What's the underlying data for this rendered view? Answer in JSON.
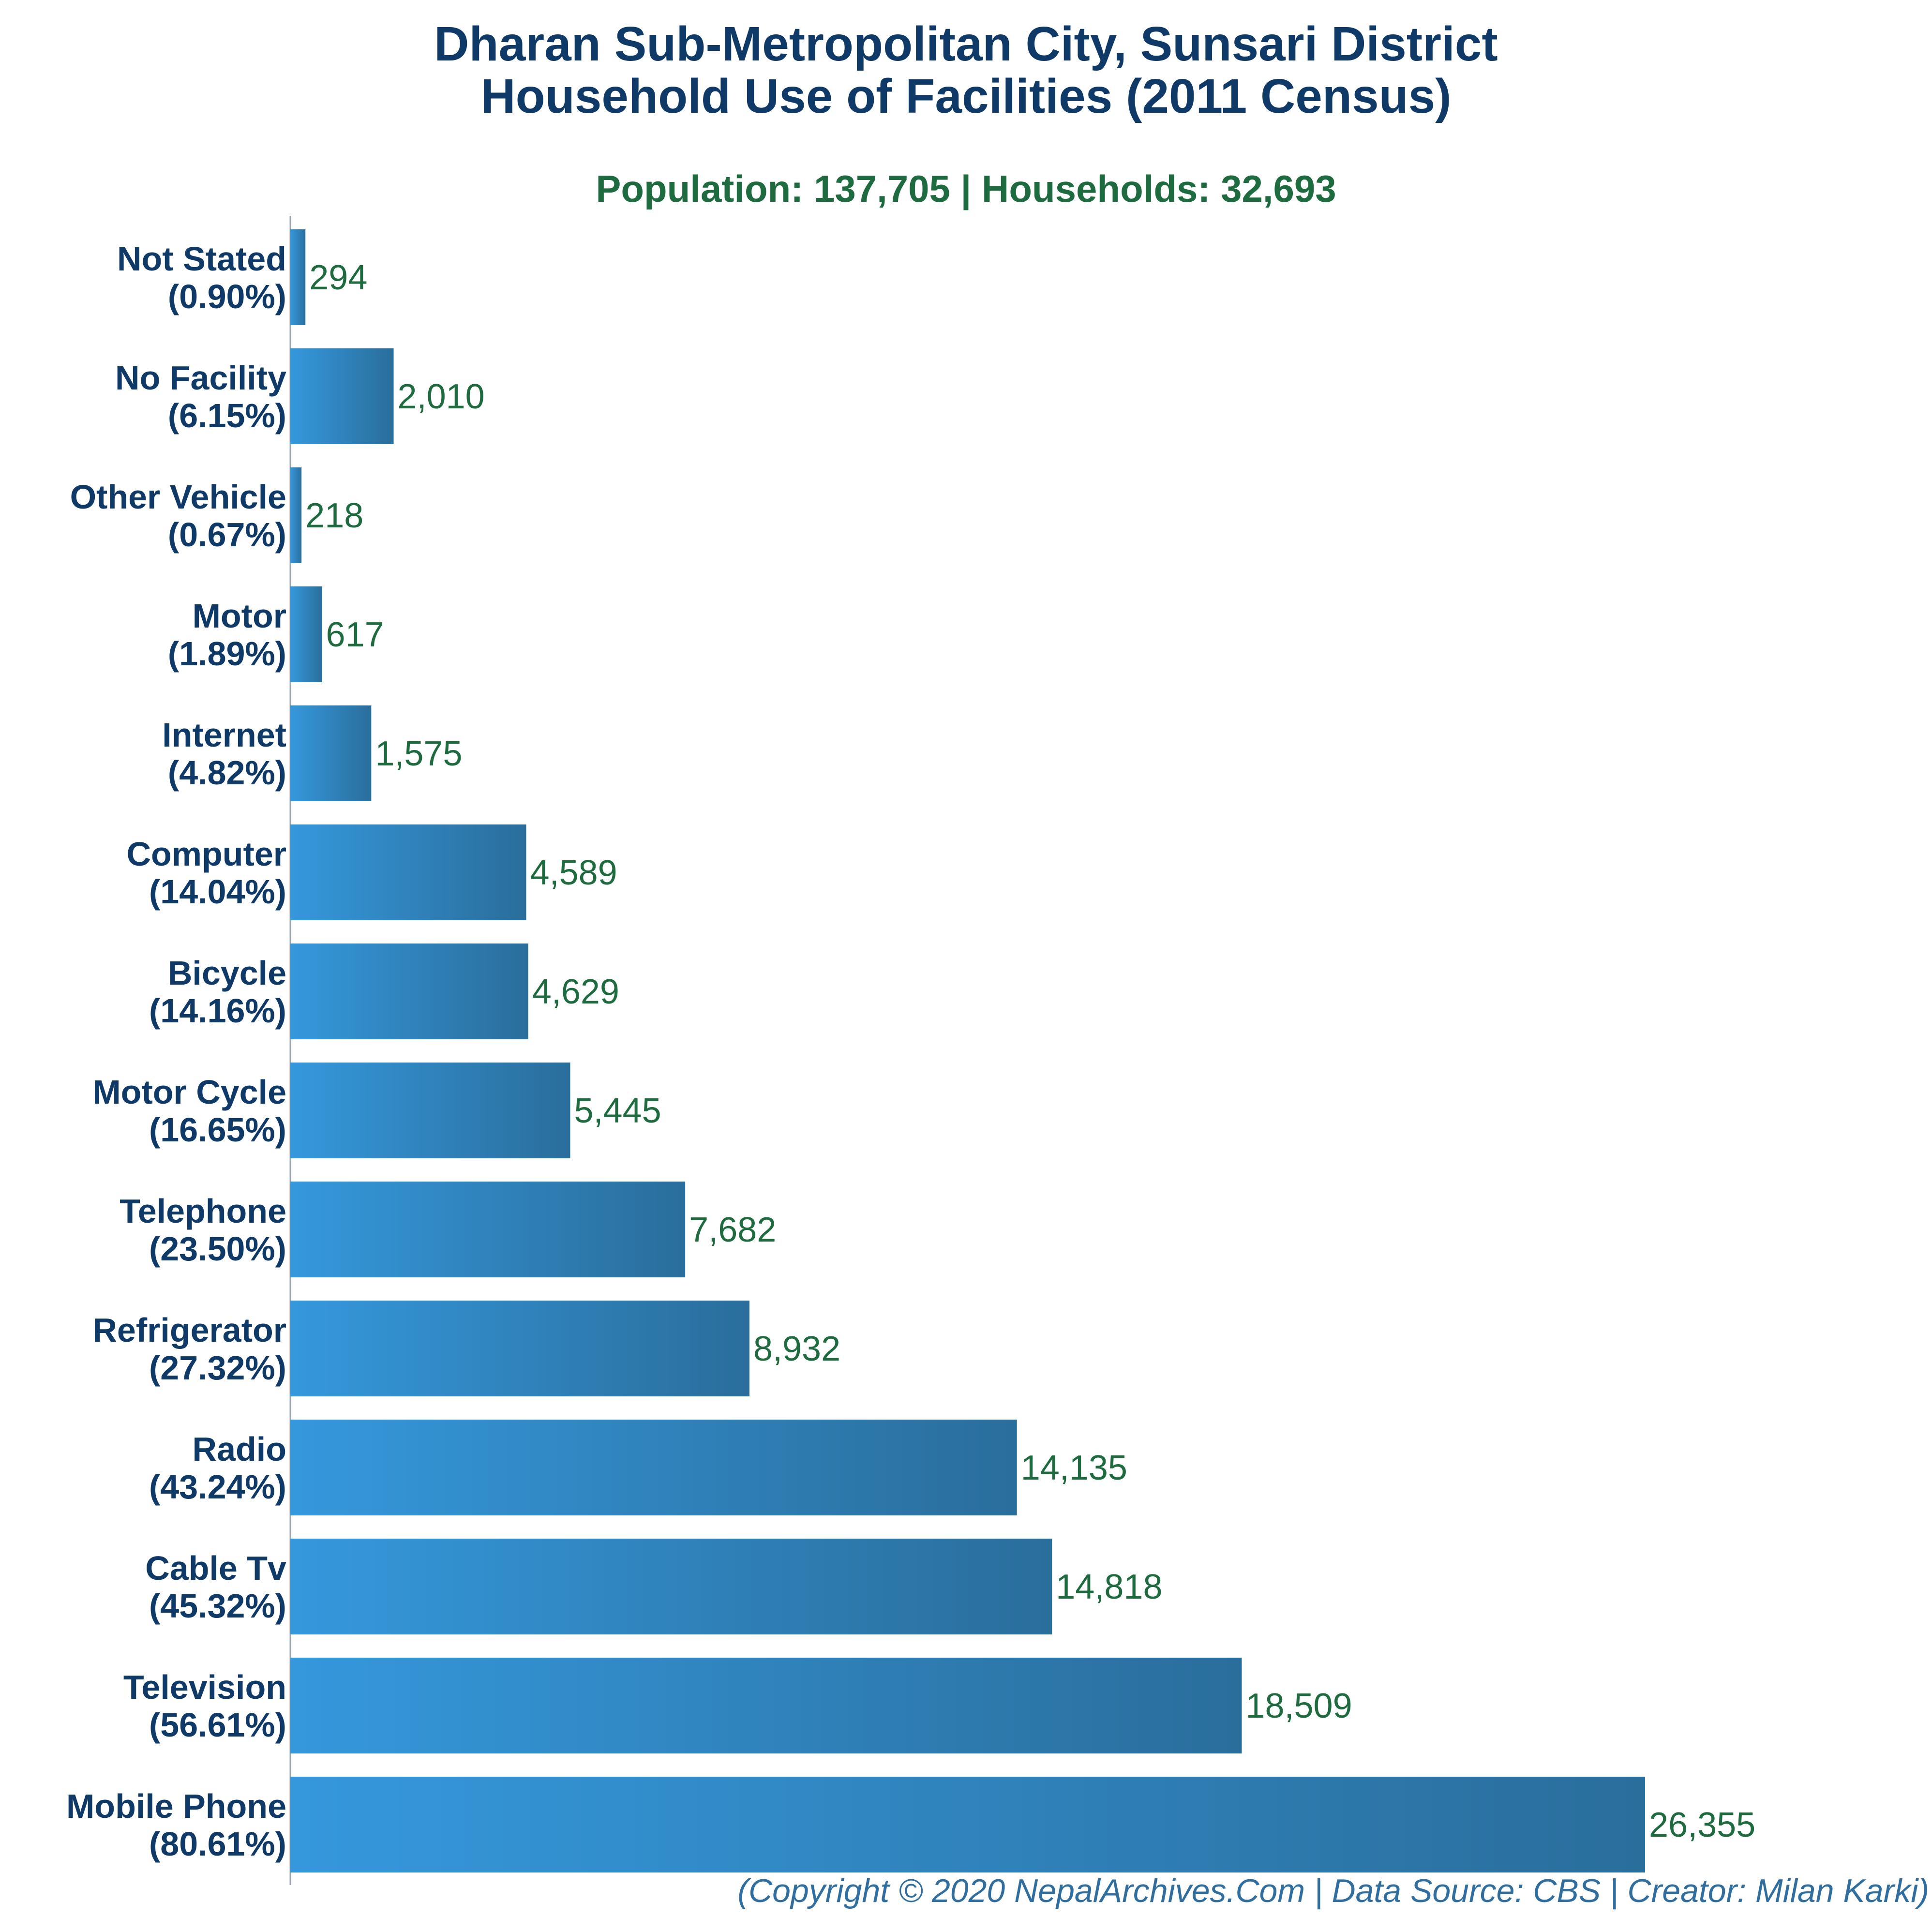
{
  "title_line1": "Dharan Sub-Metropolitan City, Sunsari District",
  "title_line2": "Household Use of Facilities (2011 Census)",
  "subtitle": "Population: 137,705 | Households: 32,693",
  "copyright": "(Copyright © 2020 NepalArchives.Com | Data Source: CBS | Creator: Milan Karki)",
  "colors": {
    "title": "#0f3a68",
    "subtitle": "#1d6b3e",
    "bar_gradient_start": "#3598dc",
    "bar_gradient_end": "#2a6e9c",
    "value_label": "#1d6b3e",
    "category_label": "#0f3a68",
    "copyright": "#2f6e9f"
  },
  "chart_data": {
    "type": "bar",
    "orientation": "horizontal",
    "categories": [
      "Not Stated",
      "No Facility",
      "Other Vehicle",
      "Motor",
      "Internet",
      "Computer",
      "Bicycle",
      "Motor Cycle",
      "Telephone",
      "Refrigerator",
      "Radio",
      "Cable Tv",
      "Television",
      "Mobile Phone"
    ],
    "percent_labels": [
      "(0.90%)",
      "(6.15%)",
      "(0.67%)",
      "(1.89%)",
      "(4.82%)",
      "(14.04%)",
      "(14.16%)",
      "(16.65%)",
      "(23.50%)",
      "(27.32%)",
      "(43.24%)",
      "(45.32%)",
      "(56.61%)",
      "(80.61%)"
    ],
    "values": [
      294,
      2010,
      218,
      617,
      1575,
      4589,
      4629,
      5445,
      7682,
      8932,
      14135,
      14818,
      18509,
      26355
    ],
    "value_labels": [
      "294",
      "2,010",
      "218",
      "617",
      "1,575",
      "4,589",
      "4,629",
      "5,445",
      "7,682",
      "8,932",
      "14,135",
      "14,818",
      "18,509",
      "26,355"
    ],
    "xlim": [
      0,
      26355
    ],
    "grid": false,
    "legend": "none"
  }
}
